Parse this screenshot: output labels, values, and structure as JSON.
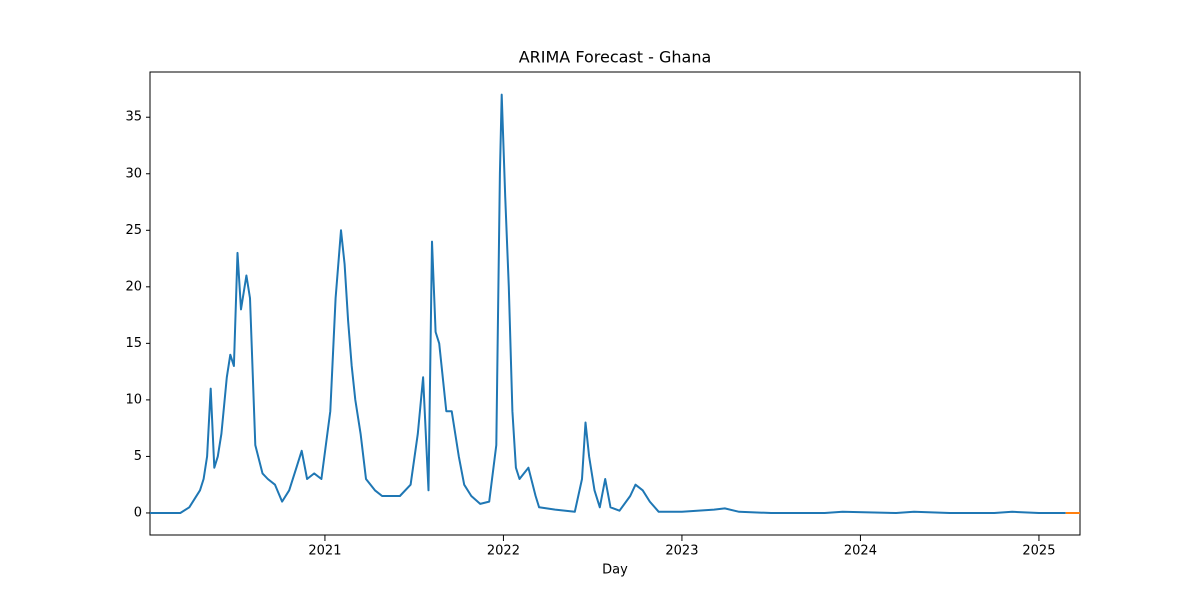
{
  "chart_data": {
    "type": "line",
    "title": "ARIMA Forecast - Ghana",
    "x_label": "Day",
    "x": [
      2020.02,
      2020.1,
      2020.19,
      2020.24,
      2020.3,
      2020.32,
      2020.34,
      2020.36,
      2020.38,
      2020.4,
      2020.42,
      2020.45,
      2020.47,
      2020.49,
      2020.51,
      2020.53,
      2020.56,
      2020.58,
      2020.61,
      2020.65,
      2020.68,
      2020.72,
      2020.76,
      2020.8,
      2020.84,
      2020.87,
      2020.9,
      2020.94,
      2020.98,
      2021.03,
      2021.06,
      2021.09,
      2021.11,
      2021.13,
      2021.15,
      2021.17,
      2021.2,
      2021.23,
      2021.28,
      2021.32,
      2021.38,
      2021.42,
      2021.48,
      2021.52,
      2021.55,
      2021.58,
      2021.6,
      2021.62,
      2021.64,
      2021.68,
      2021.71,
      2021.75,
      2021.78,
      2021.82,
      2021.87,
      2021.92,
      2021.96,
      2021.98,
      2021.99,
      2022.01,
      2022.03,
      2022.05,
      2022.07,
      2022.09,
      2022.14,
      2022.18,
      2022.2,
      2022.29,
      2022.4,
      2022.44,
      2022.46,
      2022.48,
      2022.51,
      2022.54,
      2022.57,
      2022.6,
      2022.65,
      2022.71,
      2022.74,
      2022.78,
      2022.82,
      2022.87,
      2023.0,
      2023.18,
      2023.24,
      2023.32,
      2023.5,
      2023.8,
      2023.9,
      2024.2,
      2024.3,
      2024.5,
      2024.75,
      2024.85,
      2025.0,
      2025.15
    ],
    "series": [
      {
        "color": "#1f77b4",
        "values": [
          0,
          0,
          0,
          0.5,
          2,
          3,
          5,
          11,
          4,
          5,
          7,
          12,
          14,
          13,
          23,
          18,
          21,
          19,
          6,
          3.5,
          3,
          2.5,
          1,
          2,
          4,
          5.5,
          3,
          3.5,
          3,
          9,
          19,
          25,
          22,
          17,
          13,
          10,
          7,
          3,
          2,
          1.5,
          1.5,
          1.5,
          2.5,
          7,
          12,
          2,
          24,
          16,
          15,
          9,
          9,
          5,
          2.5,
          1.5,
          0.8,
          1,
          6,
          30,
          37,
          28,
          20,
          9,
          4,
          3,
          4,
          1.5,
          0.5,
          0.3,
          0.1,
          3,
          8,
          5,
          2,
          0.5,
          3,
          0.5,
          0.2,
          1.5,
          2.5,
          2,
          1,
          0.1,
          0.1,
          0.3,
          0.4,
          0.1,
          0,
          0,
          0.1,
          0,
          0.1,
          0,
          0,
          0.1,
          0,
          0
        ]
      },
      {
        "color": "#ff7f0e",
        "x": [
          2025.15,
          2025.23
        ],
        "values": [
          0,
          0
        ]
      }
    ],
    "xlim": [
      2020.02,
      2025.23
    ],
    "ylim": [
      -1.95,
      39.0
    ],
    "xticks": [
      2021,
      2022,
      2023,
      2024,
      2025
    ],
    "yticks": [
      0,
      5,
      10,
      15,
      20,
      25,
      30,
      35
    ]
  }
}
